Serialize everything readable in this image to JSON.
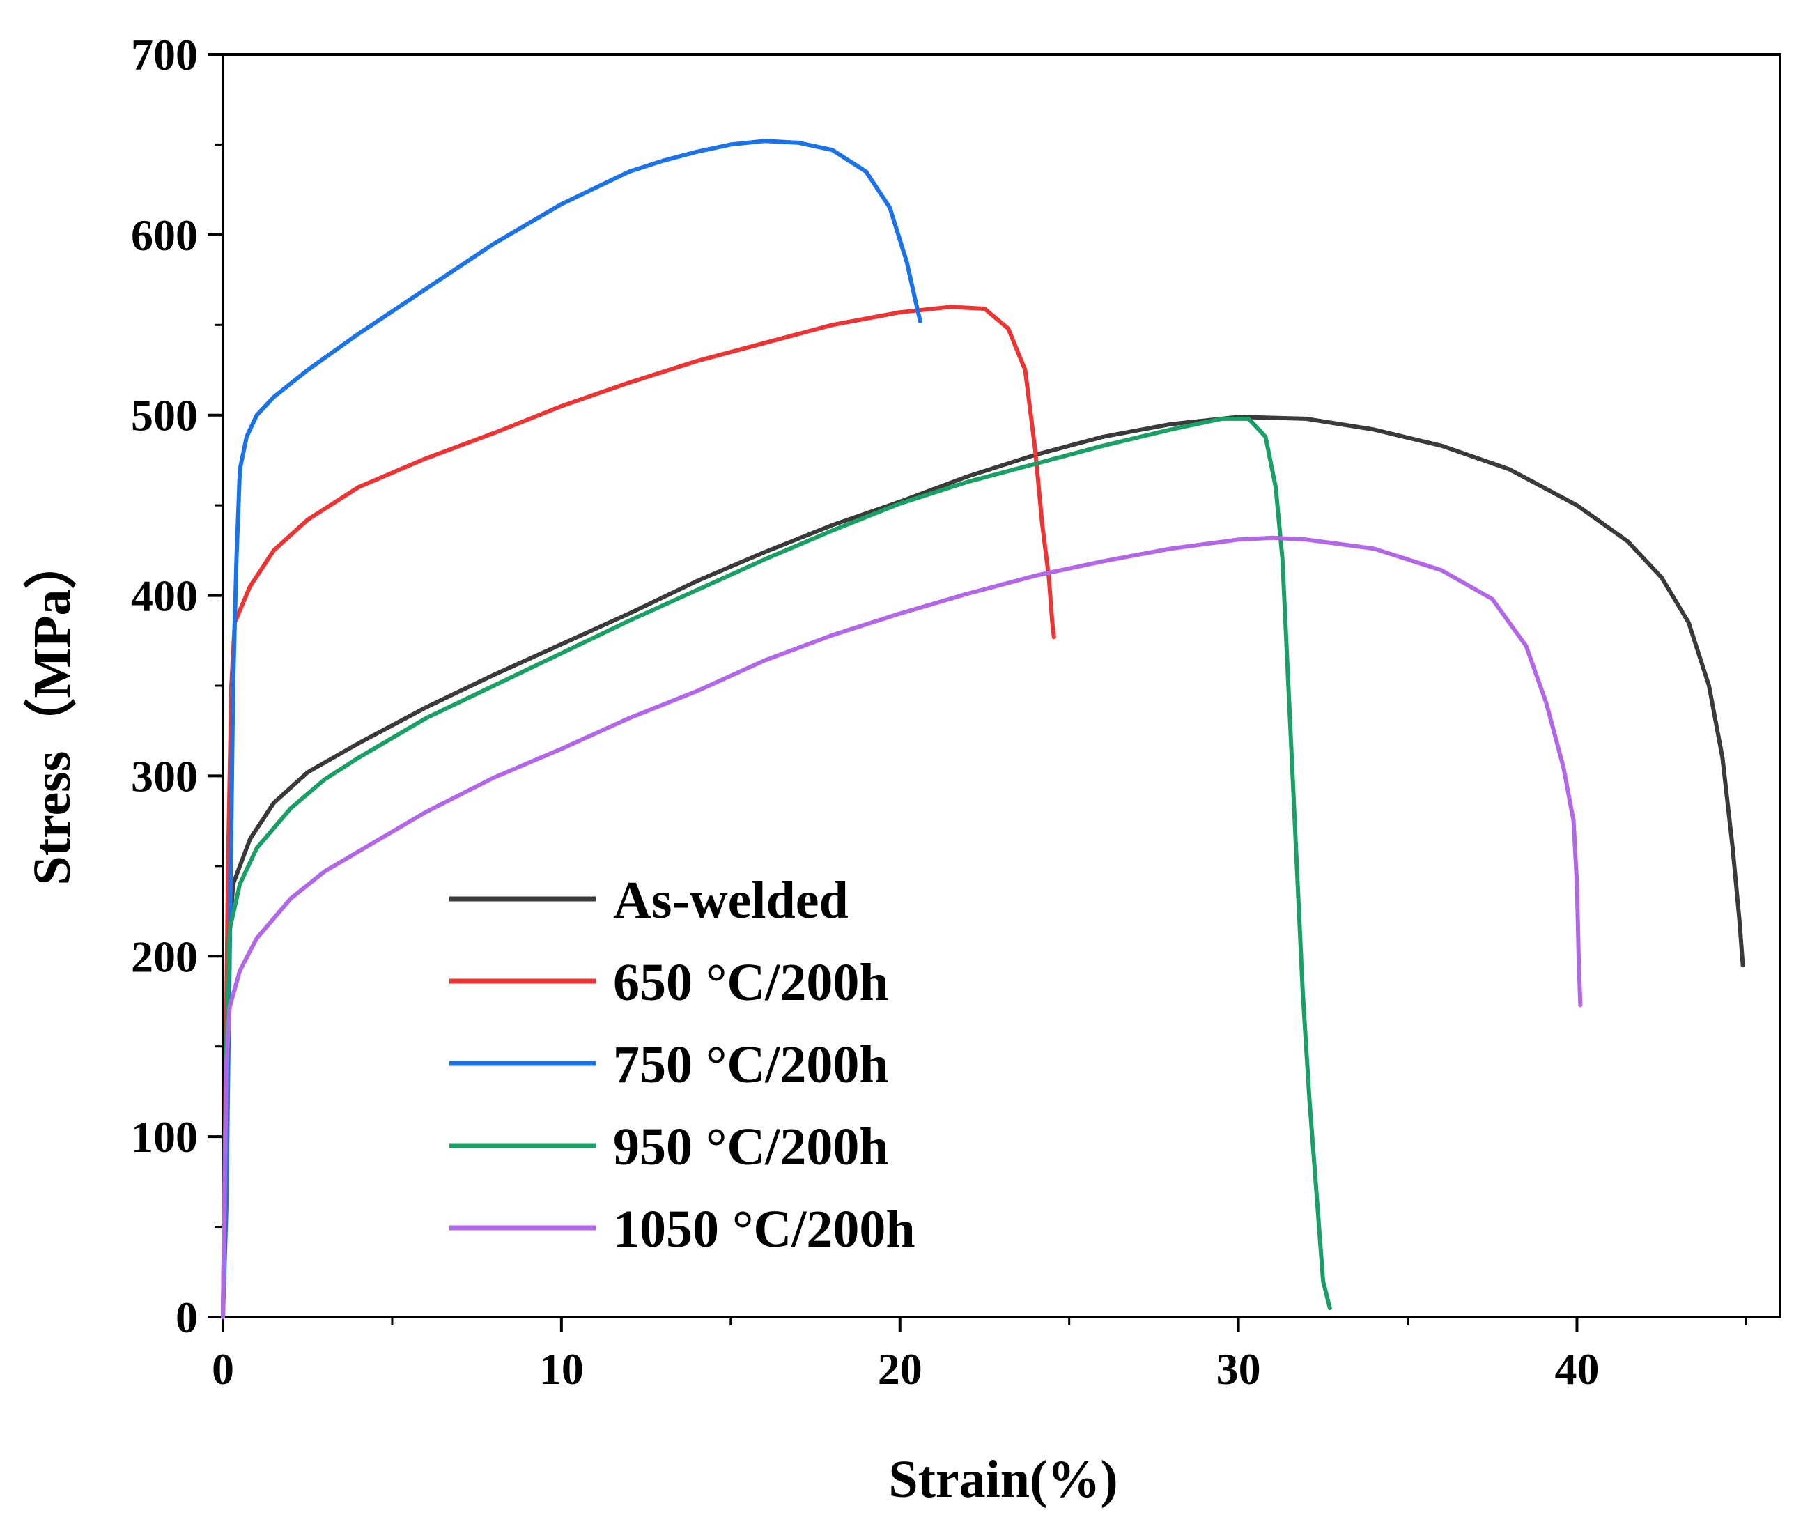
{
  "chart_data": {
    "type": "line",
    "title": "",
    "xlabel": "Strain(%)",
    "ylabel": "Stress（MPa）",
    "xlim": [
      0,
      46
    ],
    "ylim": [
      0,
      700
    ],
    "xticks": [
      0,
      10,
      20,
      30,
      40
    ],
    "yticks": [
      0,
      100,
      200,
      300,
      400,
      500,
      600,
      700
    ],
    "legend_position": "bottom-left",
    "grid": false,
    "series": [
      {
        "name": "As-welded",
        "color": "#3a3a3a",
        "points": [
          [
            0,
            0
          ],
          [
            0.15,
            200
          ],
          [
            0.3,
            240
          ],
          [
            0.8,
            265
          ],
          [
            1.5,
            285
          ],
          [
            2.5,
            302
          ],
          [
            4,
            318
          ],
          [
            6,
            338
          ],
          [
            8,
            356
          ],
          [
            10,
            373
          ],
          [
            12,
            390
          ],
          [
            14,
            408
          ],
          [
            16,
            424
          ],
          [
            18,
            439
          ],
          [
            20,
            452
          ],
          [
            22,
            466
          ],
          [
            24,
            478
          ],
          [
            26,
            488
          ],
          [
            28,
            495
          ],
          [
            30,
            499
          ],
          [
            32,
            498
          ],
          [
            34,
            492
          ],
          [
            36,
            483
          ],
          [
            38,
            470
          ],
          [
            40,
            450
          ],
          [
            41.5,
            430
          ],
          [
            42.5,
            410
          ],
          [
            43.3,
            385
          ],
          [
            43.9,
            350
          ],
          [
            44.3,
            310
          ],
          [
            44.6,
            260
          ],
          [
            44.8,
            220
          ],
          [
            44.9,
            195
          ]
        ]
      },
      {
        "name": "650 °C/200h",
        "color": "#ee3333",
        "points": [
          [
            0,
            0
          ],
          [
            0.15,
            250
          ],
          [
            0.25,
            350
          ],
          [
            0.35,
            385
          ],
          [
            0.8,
            405
          ],
          [
            1.5,
            425
          ],
          [
            2.5,
            442
          ],
          [
            4,
            460
          ],
          [
            6,
            476
          ],
          [
            8,
            490
          ],
          [
            10,
            505
          ],
          [
            12,
            518
          ],
          [
            14,
            530
          ],
          [
            16,
            540
          ],
          [
            18,
            550
          ],
          [
            20,
            557
          ],
          [
            21.5,
            560
          ],
          [
            22.5,
            559
          ],
          [
            23.2,
            548
          ],
          [
            23.7,
            525
          ],
          [
            24,
            480
          ],
          [
            24.2,
            440
          ],
          [
            24.4,
            410
          ],
          [
            24.5,
            385
          ],
          [
            24.55,
            377
          ]
        ]
      },
      {
        "name": "750 °C/200h",
        "color": "#1a73e8",
        "points": [
          [
            0,
            0
          ],
          [
            0.1,
            60
          ],
          [
            0.2,
            200
          ],
          [
            0.3,
            350
          ],
          [
            0.4,
            420
          ],
          [
            0.5,
            470
          ],
          [
            0.7,
            488
          ],
          [
            1,
            500
          ],
          [
            1.5,
            510
          ],
          [
            2.5,
            525
          ],
          [
            4,
            545
          ],
          [
            6,
            570
          ],
          [
            8,
            595
          ],
          [
            10,
            617
          ],
          [
            12,
            635
          ],
          [
            13,
            641
          ],
          [
            14,
            646
          ],
          [
            15,
            650
          ],
          [
            16,
            652
          ],
          [
            17,
            651
          ],
          [
            18,
            647
          ],
          [
            19,
            635
          ],
          [
            19.7,
            615
          ],
          [
            20.2,
            585
          ],
          [
            20.5,
            560
          ],
          [
            20.6,
            552
          ]
        ]
      },
      {
        "name": "950 °C/200h",
        "color": "#19a065",
        "points": [
          [
            0,
            0
          ],
          [
            0.1,
            150
          ],
          [
            0.2,
            215
          ],
          [
            0.5,
            240
          ],
          [
            1,
            260
          ],
          [
            2,
            282
          ],
          [
            3,
            298
          ],
          [
            4,
            310
          ],
          [
            6,
            332
          ],
          [
            8,
            350
          ],
          [
            10,
            368
          ],
          [
            12,
            386
          ],
          [
            14,
            403
          ],
          [
            16,
            420
          ],
          [
            18,
            436
          ],
          [
            20,
            451
          ],
          [
            22,
            463
          ],
          [
            24,
            473
          ],
          [
            26,
            483
          ],
          [
            28,
            492
          ],
          [
            29.5,
            498
          ],
          [
            30.3,
            498
          ],
          [
            30.8,
            488
          ],
          [
            31.1,
            460
          ],
          [
            31.3,
            420
          ],
          [
            31.5,
            340
          ],
          [
            31.7,
            260
          ],
          [
            31.9,
            180
          ],
          [
            32.1,
            120
          ],
          [
            32.3,
            70
          ],
          [
            32.5,
            20
          ],
          [
            32.7,
            5
          ]
        ]
      },
      {
        "name": "1050 °C/200h",
        "color": "#b266e8",
        "points": [
          [
            0,
            0
          ],
          [
            0.05,
            60
          ],
          [
            0.1,
            140
          ],
          [
            0.2,
            172
          ],
          [
            0.5,
            192
          ],
          [
            1,
            210
          ],
          [
            2,
            232
          ],
          [
            3,
            247
          ],
          [
            4,
            258
          ],
          [
            6,
            280
          ],
          [
            8,
            299
          ],
          [
            10,
            315
          ],
          [
            12,
            332
          ],
          [
            14,
            347
          ],
          [
            16,
            364
          ],
          [
            18,
            378
          ],
          [
            20,
            390
          ],
          [
            22,
            401
          ],
          [
            24,
            411
          ],
          [
            26,
            419
          ],
          [
            28,
            426
          ],
          [
            30,
            431
          ],
          [
            31,
            432
          ],
          [
            32,
            431
          ],
          [
            34,
            426
          ],
          [
            36,
            414
          ],
          [
            37.5,
            398
          ],
          [
            38.5,
            372
          ],
          [
            39.1,
            340
          ],
          [
            39.6,
            305
          ],
          [
            39.9,
            275
          ],
          [
            40,
            240
          ],
          [
            40.05,
            200
          ],
          [
            40.1,
            173
          ]
        ]
      }
    ]
  }
}
